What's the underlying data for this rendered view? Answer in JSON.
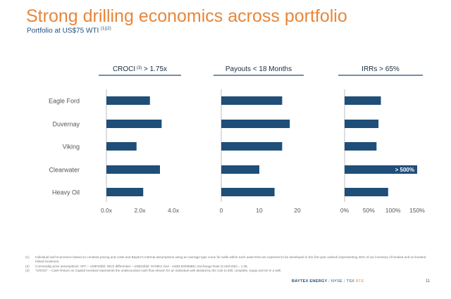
{
  "header": {
    "title": "Strong drilling economics across portfolio",
    "subtitle": "Portfolio at US$75 WTI",
    "subtitle_sup": "(1)(2)"
  },
  "colors": {
    "title": "#e8863a",
    "bar": "#1f4e79",
    "panel_rule": "#1f4e79",
    "axis": "#bfbfbf"
  },
  "chart_data": [
    {
      "type": "bar",
      "orientation": "horizontal",
      "title": "CROCI",
      "title_sup": "(3)",
      "title_suffix": " > 1.75x",
      "categories": [
        "Eagle Ford",
        "Duvernay",
        "Viking",
        "Clearwater",
        "Heavy Oil"
      ],
      "values": [
        2.6,
        3.3,
        1.8,
        3.2,
        2.2
      ],
      "data_labels": [
        null,
        null,
        null,
        null,
        null
      ],
      "xlim": [
        0,
        4.0
      ],
      "xticks": [
        0,
        2.0,
        4.0
      ],
      "xtick_labels": [
        "0.0x",
        "2.0x",
        "4.0x"
      ]
    },
    {
      "type": "bar",
      "orientation": "horizontal",
      "title": "Payouts < 18 Months",
      "title_sup": "",
      "title_suffix": "",
      "categories": [
        "Eagle Ford",
        "Duvernay",
        "Viking",
        "Clearwater",
        "Heavy Oil"
      ],
      "values": [
        16,
        18,
        16,
        10,
        14
      ],
      "data_labels": [
        null,
        null,
        null,
        null,
        null
      ],
      "xlim": [
        0,
        20
      ],
      "xticks": [
        0,
        10,
        20
      ],
      "xtick_labels": [
        "0",
        "10",
        "20"
      ]
    },
    {
      "type": "bar",
      "orientation": "horizontal",
      "title": "IRRs > 65%",
      "title_sup": "",
      "title_suffix": "",
      "categories": [
        "Eagle Ford",
        "Duvernay",
        "Viking",
        "Clearwater",
        "Heavy Oil"
      ],
      "values": [
        75,
        70,
        66,
        150,
        90
      ],
      "data_labels": [
        null,
        null,
        null,
        "> 500%",
        null
      ],
      "xlim": [
        0,
        150
      ],
      "xticks": [
        0,
        50,
        100,
        150
      ],
      "xtick_labels": [
        "0%",
        "50%",
        "100%",
        "150%"
      ]
    }
  ],
  "footnotes": [
    {
      "num": "(1)",
      "text": "Individual well economics based on constant pricing and costs and Baytex's internal assumptions using an average type curve for wells within each asset that are expected to be developed in the five-year outlook (representing 45% of our inventory of booked and un-booked risked locations)."
    },
    {
      "num": "(2)",
      "text": "Commodity price assumptions: WTI – US$75/bbl; WCS differential – US$15/bbl; NYMEX Gas - US$3.50/MMBtu; Exchange Rate (CAD/USD) – 1.35."
    },
    {
      "num": "(3)",
      "text": "\"CROCI\" – Cash Return on Capital Invested represents the undiscounted cash flow stream for an individual well divided by the cost to drill, complete, equip and tie-in a well."
    }
  ],
  "footer": {
    "company": "BAYTEX ENERGY",
    "sep": " / ",
    "exchange1": "NYSE",
    "exchange2": "TSX",
    "ticker": "BTE",
    "page_number": "11"
  }
}
